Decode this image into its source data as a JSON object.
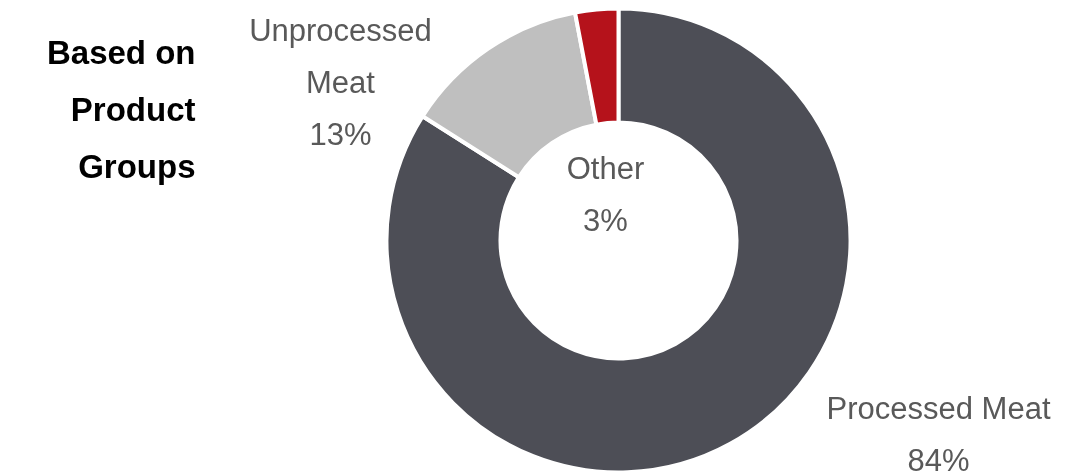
{
  "chart_data": {
    "type": "donut",
    "title": "Based on Product Groups",
    "categories": [
      "Processed Meat",
      "Unprocessed Meat",
      "Other"
    ],
    "values": [
      84,
      13,
      3
    ],
    "colors": [
      "#4d4e56",
      "#bfbfbf",
      "#b5121b"
    ],
    "value_labels": [
      "84%",
      "13%",
      "3%"
    ]
  }
}
